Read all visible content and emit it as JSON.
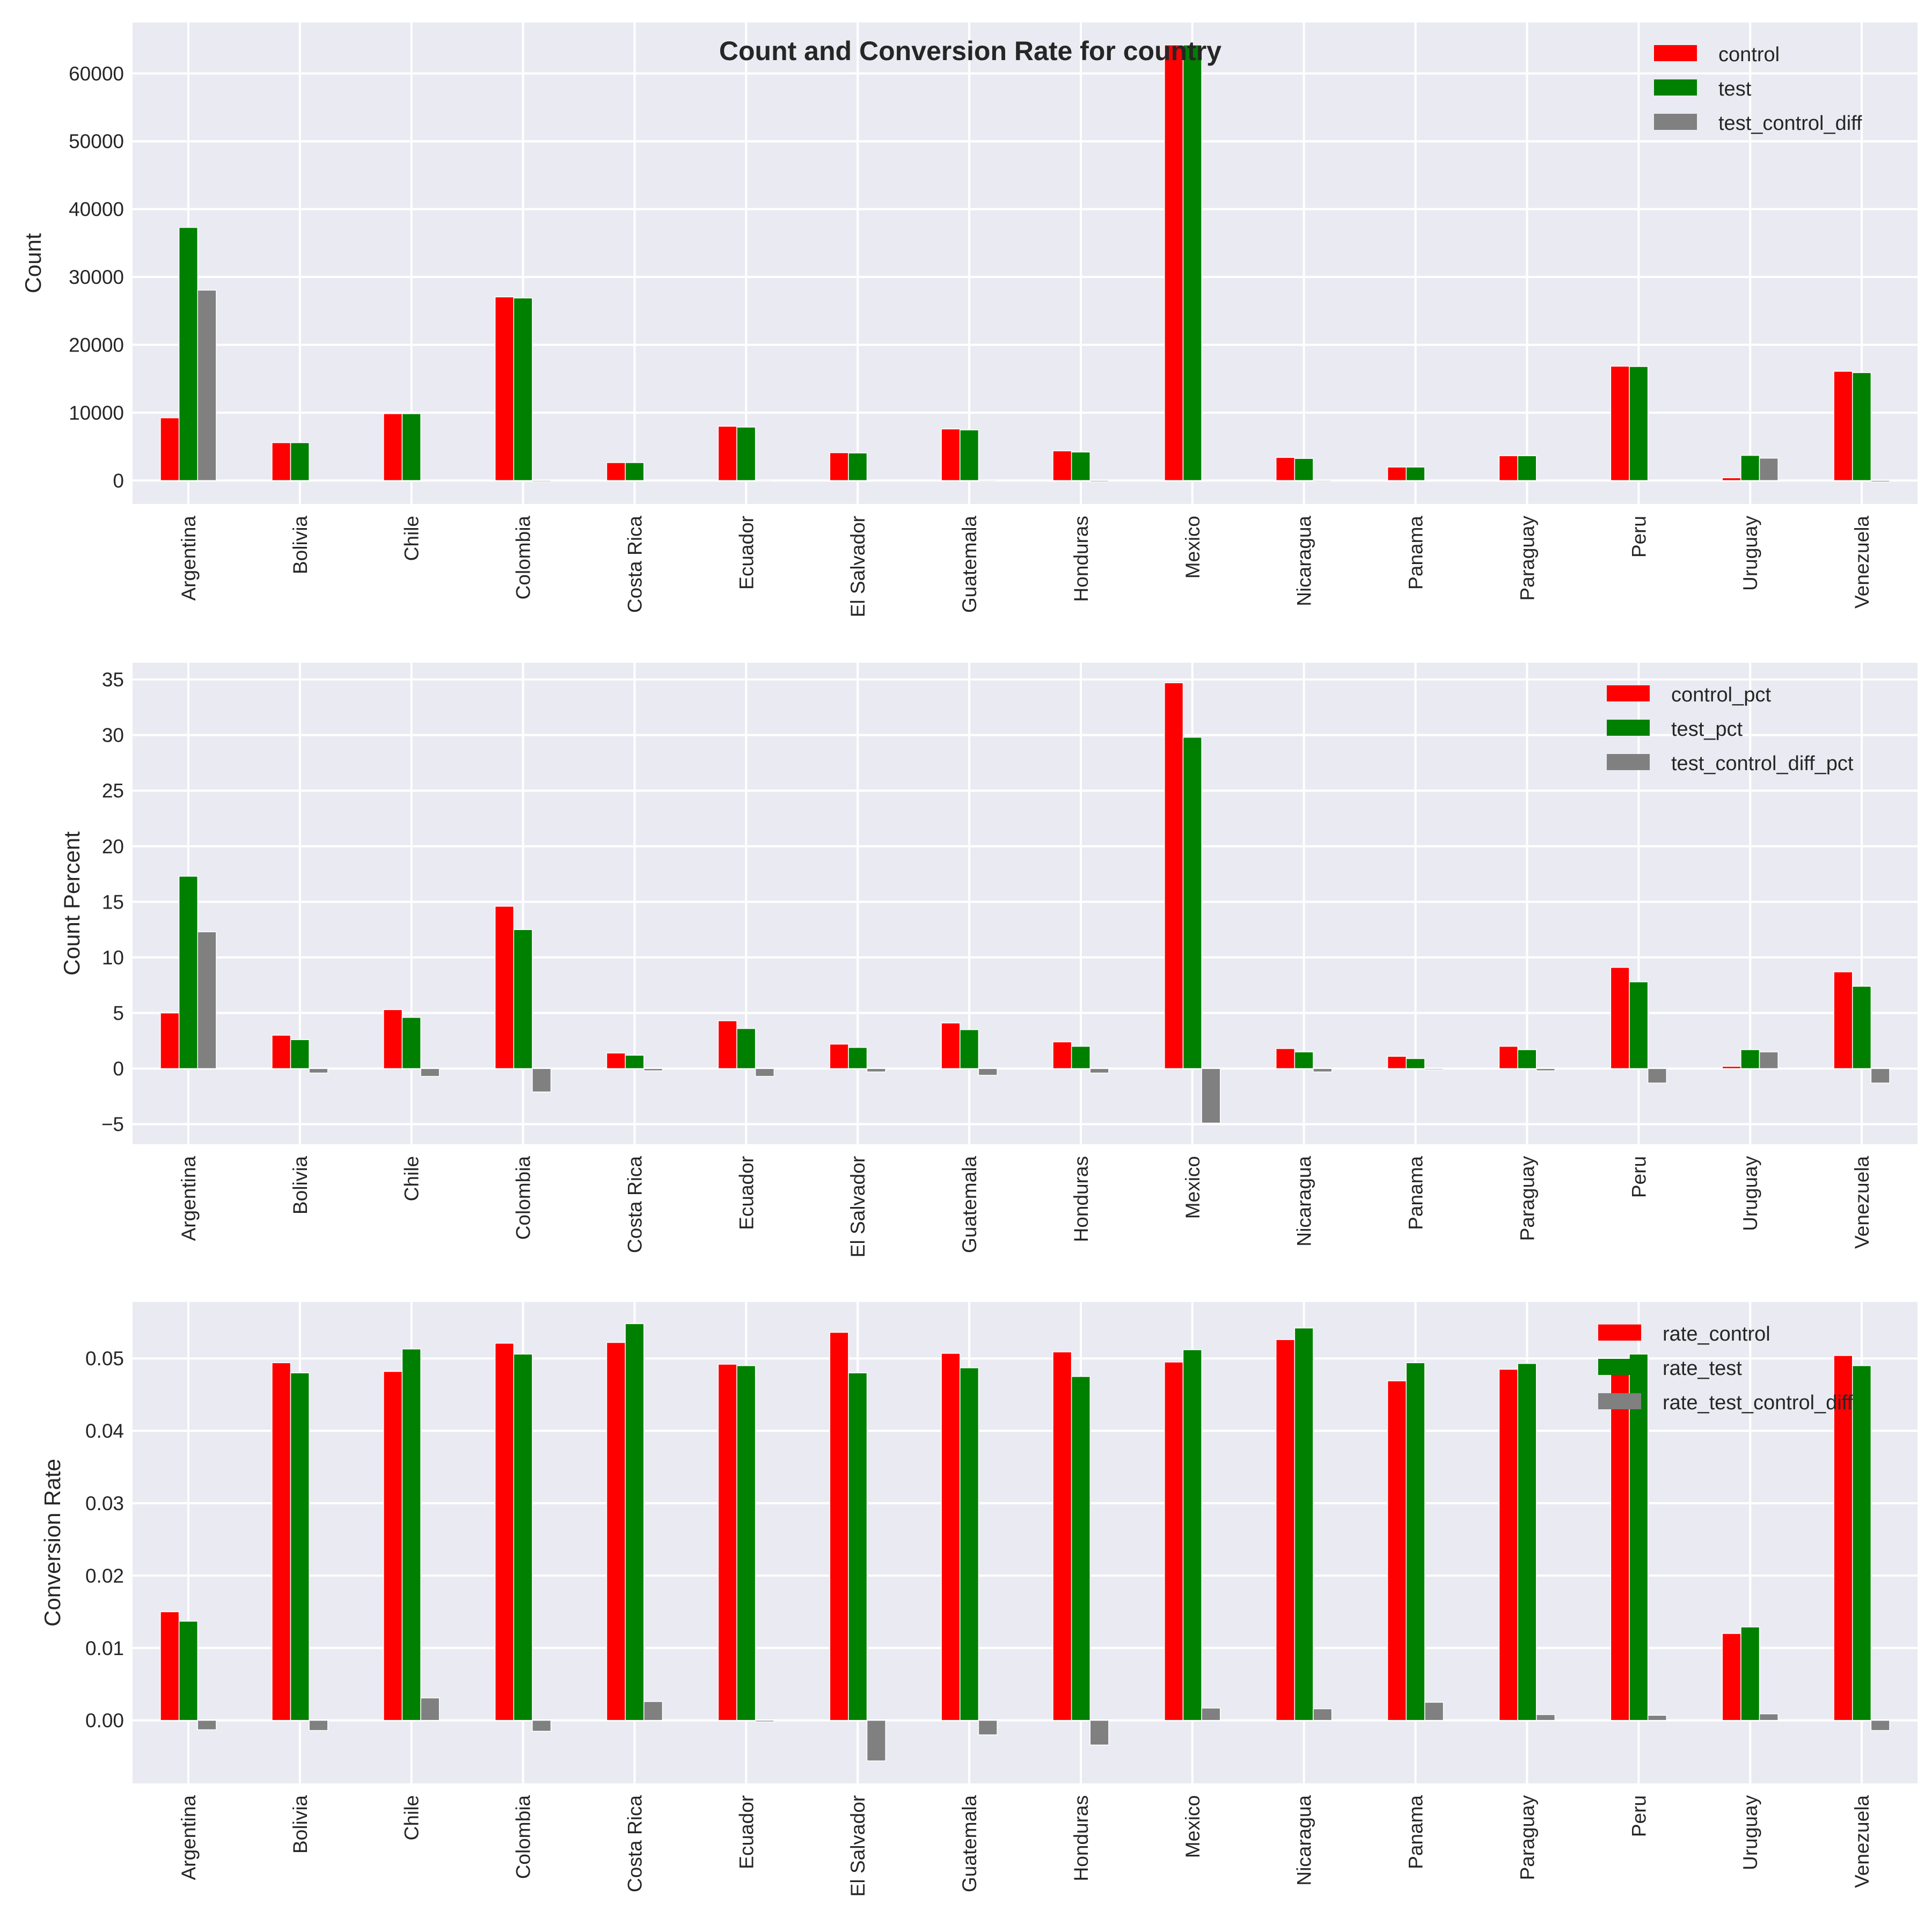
{
  "title": "Count and Conversion Rate for country",
  "colors": {
    "control": "#ff0000",
    "test": "#008000",
    "diff": "#808080",
    "bg": "#eaeaf2",
    "grid": "#ffffff"
  },
  "chart_data": [
    {
      "type": "bar",
      "ylabel": "Count",
      "categories": [
        "Argentina",
        "Bolivia",
        "Chile",
        "Colombia",
        "Costa Rica",
        "Ecuador",
        "El Salvador",
        "Guatemala",
        "Honduras",
        "Mexico",
        "Nicaragua",
        "Panama",
        "Paraguay",
        "Peru",
        "Uruguay",
        "Venezuela"
      ],
      "series": [
        {
          "name": "control",
          "values": [
            9240,
            5580,
            9850,
            27060,
            2640,
            8000,
            4100,
            7600,
            4370,
            64200,
            3400,
            1980,
            3650,
            16850,
            400,
            16100
          ]
        },
        {
          "name": "test",
          "values": [
            37300,
            5580,
            9850,
            26900,
            2640,
            7870,
            4060,
            7460,
            4200,
            64200,
            3250,
            1980,
            3650,
            16800,
            3700,
            15900
          ]
        },
        {
          "name": "test_control_diff",
          "values": [
            28060,
            0,
            0,
            -160,
            0,
            -130,
            -40,
            -140,
            -170,
            0,
            -150,
            0,
            0,
            -50,
            3300,
            -200
          ]
        }
      ],
      "ylim": [
        -3450,
        67500
      ],
      "yticks": [
        0,
        10000,
        20000,
        30000,
        40000,
        50000,
        60000
      ],
      "ytick_labels": [
        "0",
        "10000",
        "20000",
        "30000",
        "40000",
        "50000",
        "60000"
      ],
      "legend": "top-right",
      "grid": true
    },
    {
      "type": "bar",
      "ylabel": "Count Percent",
      "categories": [
        "Argentina",
        "Bolivia",
        "Chile",
        "Colombia",
        "Costa Rica",
        "Ecuador",
        "El Salvador",
        "Guatemala",
        "Honduras",
        "Mexico",
        "Nicaragua",
        "Panama",
        "Paraguay",
        "Peru",
        "Uruguay",
        "Venezuela"
      ],
      "series": [
        {
          "name": "control_pct",
          "values": [
            5.0,
            3.0,
            5.3,
            14.6,
            1.4,
            4.3,
            2.2,
            4.1,
            2.4,
            34.7,
            1.8,
            1.1,
            2.0,
            9.1,
            0.2,
            8.7
          ]
        },
        {
          "name": "test_pct",
          "values": [
            17.3,
            2.6,
            4.6,
            12.5,
            1.2,
            3.6,
            1.9,
            3.5,
            2.0,
            29.8,
            1.5,
            0.9,
            1.7,
            7.8,
            1.7,
            7.4
          ]
        },
        {
          "name": "test_control_diff_pct",
          "values": [
            12.3,
            -0.4,
            -0.7,
            -2.1,
            -0.2,
            -0.7,
            -0.3,
            -0.6,
            -0.4,
            -4.9,
            -0.3,
            -0.1,
            -0.2,
            -1.3,
            1.5,
            -1.3
          ]
        }
      ],
      "ylim": [
        -6.8,
        36.5
      ],
      "yticks": [
        -5,
        0,
        5,
        10,
        15,
        20,
        25,
        30,
        35
      ],
      "ytick_labels": [
        "−5",
        "0",
        "5",
        "10",
        "15",
        "20",
        "25",
        "30",
        "35"
      ],
      "legend": "top-right",
      "grid": true
    },
    {
      "type": "bar",
      "ylabel": "Conversion Rate",
      "categories": [
        "Argentina",
        "Bolivia",
        "Chile",
        "Colombia",
        "Costa Rica",
        "Ecuador",
        "El Salvador",
        "Guatemala",
        "Honduras",
        "Mexico",
        "Nicaragua",
        "Panama",
        "Paraguay",
        "Peru",
        "Uruguay",
        "Venezuela"
      ],
      "series": [
        {
          "name": "rate_control",
          "values": [
            0.015,
            0.0494,
            0.0482,
            0.0521,
            0.0522,
            0.0492,
            0.0536,
            0.0507,
            0.0509,
            0.0495,
            0.0526,
            0.0469,
            0.0485,
            0.0499,
            0.012,
            0.0504
          ]
        },
        {
          "name": "rate_test",
          "values": [
            0.0137,
            0.048,
            0.0513,
            0.0506,
            0.0548,
            0.049,
            0.048,
            0.0487,
            0.0475,
            0.0512,
            0.0542,
            0.0494,
            0.0493,
            0.0506,
            0.0129,
            0.049
          ]
        },
        {
          "name": "rate_test_control_diff",
          "values": [
            -0.0013,
            -0.0014,
            0.0031,
            -0.0015,
            0.0026,
            -0.0002,
            -0.0056,
            -0.002,
            -0.0034,
            0.0017,
            0.0016,
            0.0025,
            0.0008,
            0.0007,
            0.0009,
            -0.0014
          ]
        }
      ],
      "ylim": [
        -0.0087,
        0.0578
      ],
      "yticks": [
        0,
        0.01,
        0.02,
        0.03,
        0.04,
        0.05
      ],
      "ytick_labels": [
        "0.00",
        "0.01",
        "0.02",
        "0.03",
        "0.04",
        "0.05"
      ],
      "legend": "top-right",
      "grid": true
    }
  ]
}
